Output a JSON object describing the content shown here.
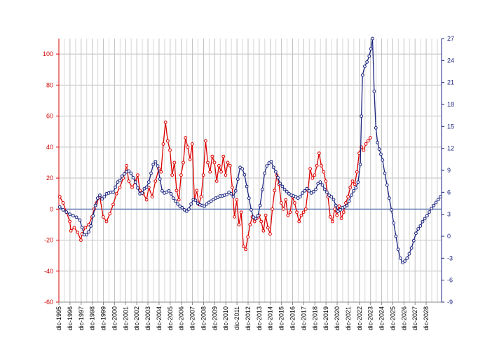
{
  "chart_data": {
    "type": "line",
    "title": "",
    "xlabel": "",
    "ylabel": "",
    "grid": true,
    "x_range": [
      1995.92,
      2030.3
    ],
    "x_tick_labels": [
      "dic-1995",
      "dic-1996",
      "dic-1997",
      "dic-1998",
      "dic-1999",
      "dic-2000",
      "dic-2001",
      "dic-2002",
      "dic-2003",
      "dic-2004",
      "dic-2005",
      "dic-2006",
      "dic-2007",
      "dic-2008",
      "dic-2009",
      "dic-2010",
      "dic-2011",
      "dic-2012",
      "dic-2013",
      "dic-2014",
      "dic-2015",
      "dic-2016",
      "dic-2017",
      "dic-2018",
      "dic-2019",
      "dic-2020",
      "dic-2021",
      "dic-2022",
      "dic-2023",
      "dic-2024",
      "dic-2025",
      "dic-2026",
      "dic-2027",
      "dic-2028"
    ],
    "left_axis": {
      "ylim": [
        -60,
        110
      ],
      "ticks": [
        -60,
        -40,
        -20,
        0,
        20,
        40,
        60,
        80,
        100
      ],
      "color": "#dd0000"
    },
    "right_axis": {
      "ylim": [
        -9,
        27
      ],
      "ticks": [
        -9,
        -6,
        -3,
        0,
        3,
        6,
        9,
        12,
        15,
        18,
        21,
        24,
        27
      ],
      "color": "#1a237e"
    },
    "zero_line": {
      "axis": "left",
      "value": 0,
      "color": "#4f6fb0"
    },
    "series": [
      {
        "axis": "left",
        "color": "#dd0000",
        "marker": "circle",
        "points": [
          [
            1996.0,
            8
          ],
          [
            1996.3,
            4
          ],
          [
            1996.6,
            -2
          ],
          [
            1996.9,
            -8
          ],
          [
            1997.0,
            -14
          ],
          [
            1997.3,
            -12
          ],
          [
            1997.6,
            -15
          ],
          [
            1997.9,
            -20
          ],
          [
            1998.0,
            -16
          ],
          [
            1998.3,
            -12
          ],
          [
            1998.6,
            -10
          ],
          [
            1998.9,
            -5
          ],
          [
            1999.1,
            0
          ],
          [
            1999.3,
            4
          ],
          [
            1999.6,
            8
          ],
          [
            1999.9,
            -5
          ],
          [
            2000.2,
            -8
          ],
          [
            2000.5,
            -3
          ],
          [
            2000.8,
            3
          ],
          [
            2001.1,
            10
          ],
          [
            2001.4,
            14
          ],
          [
            2001.7,
            20
          ],
          [
            2002.0,
            28
          ],
          [
            2002.2,
            18
          ],
          [
            2002.5,
            14
          ],
          [
            2002.8,
            18
          ],
          [
            2003.0,
            22
          ],
          [
            2003.2,
            12
          ],
          [
            2003.5,
            10
          ],
          [
            2003.8,
            6
          ],
          [
            2004.0,
            14
          ],
          [
            2004.3,
            8
          ],
          [
            2004.6,
            18
          ],
          [
            2004.9,
            26
          ],
          [
            2005.1,
            24
          ],
          [
            2005.3,
            42
          ],
          [
            2005.5,
            56
          ],
          [
            2005.7,
            44
          ],
          [
            2005.9,
            38
          ],
          [
            2006.1,
            22
          ],
          [
            2006.3,
            30
          ],
          [
            2006.5,
            12
          ],
          [
            2006.7,
            6
          ],
          [
            2006.9,
            22
          ],
          [
            2007.1,
            30
          ],
          [
            2007.3,
            46
          ],
          [
            2007.5,
            40
          ],
          [
            2007.7,
            32
          ],
          [
            2007.9,
            42
          ],
          [
            2008.1,
            6
          ],
          [
            2008.3,
            12
          ],
          [
            2008.5,
            3
          ],
          [
            2008.7,
            8
          ],
          [
            2008.9,
            22
          ],
          [
            2009.1,
            44
          ],
          [
            2009.3,
            30
          ],
          [
            2009.5,
            24
          ],
          [
            2009.7,
            34
          ],
          [
            2009.9,
            30
          ],
          [
            2010.1,
            18
          ],
          [
            2010.3,
            28
          ],
          [
            2010.5,
            24
          ],
          [
            2010.7,
            34
          ],
          [
            2010.9,
            22
          ],
          [
            2011.1,
            30
          ],
          [
            2011.3,
            28
          ],
          [
            2011.5,
            14
          ],
          [
            2011.7,
            -5
          ],
          [
            2011.9,
            6
          ],
          [
            2012.1,
            -10
          ],
          [
            2012.3,
            -2
          ],
          [
            2012.5,
            -24
          ],
          [
            2012.7,
            -26
          ],
          [
            2012.9,
            -18
          ],
          [
            2013.1,
            -10
          ],
          [
            2013.3,
            -5
          ],
          [
            2013.5,
            -8
          ],
          [
            2013.7,
            -6
          ],
          [
            2013.9,
            -4
          ],
          [
            2014.1,
            -8
          ],
          [
            2014.3,
            -14
          ],
          [
            2014.5,
            -4
          ],
          [
            2014.7,
            -12
          ],
          [
            2014.9,
            -16
          ],
          [
            2015.1,
            0
          ],
          [
            2015.3,
            12
          ],
          [
            2015.5,
            22
          ],
          [
            2015.7,
            16
          ],
          [
            2015.9,
            4
          ],
          [
            2016.1,
            0
          ],
          [
            2016.3,
            6
          ],
          [
            2016.5,
            -4
          ],
          [
            2016.7,
            -2
          ],
          [
            2016.9,
            8
          ],
          [
            2017.1,
            4
          ],
          [
            2017.3,
            -2
          ],
          [
            2017.5,
            -8
          ],
          [
            2017.7,
            -4
          ],
          [
            2017.9,
            -2
          ],
          [
            2018.1,
            0
          ],
          [
            2018.3,
            12
          ],
          [
            2018.5,
            26
          ],
          [
            2018.7,
            20
          ],
          [
            2018.9,
            22
          ],
          [
            2019.1,
            28
          ],
          [
            2019.3,
            36
          ],
          [
            2019.5,
            28
          ],
          [
            2019.7,
            24
          ],
          [
            2019.9,
            18
          ],
          [
            2020.1,
            8
          ],
          [
            2020.3,
            -5
          ],
          [
            2020.5,
            -8
          ],
          [
            2020.7,
            0
          ],
          [
            2020.9,
            -4
          ],
          [
            2021.1,
            2
          ],
          [
            2021.3,
            -6
          ],
          [
            2021.5,
            -2
          ],
          [
            2021.7,
            4
          ],
          [
            2021.9,
            8
          ],
          [
            2022.1,
            14
          ],
          [
            2022.3,
            18
          ],
          [
            2022.5,
            16
          ],
          [
            2022.7,
            24
          ],
          [
            2022.9,
            36
          ],
          [
            2023.1,
            40
          ],
          [
            2023.3,
            38
          ],
          [
            2023.5,
            42
          ],
          [
            2023.7,
            44
          ],
          [
            2023.9,
            46
          ]
        ]
      },
      {
        "axis": "right",
        "color": "#1a237e",
        "marker": "circle",
        "points": [
          [
            1996.0,
            4.0
          ],
          [
            1996.3,
            3.6
          ],
          [
            1996.6,
            3.3
          ],
          [
            1996.9,
            3.0
          ],
          [
            1997.2,
            2.8
          ],
          [
            1997.5,
            2.6
          ],
          [
            1997.8,
            2.2
          ],
          [
            1998.0,
            1.2
          ],
          [
            1998.2,
            0.2
          ],
          [
            1998.4,
            0.2
          ],
          [
            1998.6,
            0.6
          ],
          [
            1998.8,
            1.4
          ],
          [
            1999.0,
            2.8
          ],
          [
            1999.2,
            4.2
          ],
          [
            1999.4,
            5.2
          ],
          [
            1999.6,
            5.6
          ],
          [
            1999.8,
            5.1
          ],
          [
            2000.0,
            5.4
          ],
          [
            2000.2,
            5.8
          ],
          [
            2000.4,
            5.9
          ],
          [
            2000.6,
            6.0
          ],
          [
            2000.8,
            6.0
          ],
          [
            2001.0,
            6.7
          ],
          [
            2001.2,
            7.4
          ],
          [
            2001.4,
            7.6
          ],
          [
            2001.6,
            8.2
          ],
          [
            2001.8,
            8.5
          ],
          [
            2002.0,
            8.8
          ],
          [
            2002.2,
            8.9
          ],
          [
            2002.4,
            8.6
          ],
          [
            2002.6,
            8.0
          ],
          [
            2002.8,
            7.4
          ],
          [
            2003.0,
            6.6
          ],
          [
            2003.2,
            5.8
          ],
          [
            2003.4,
            5.9
          ],
          [
            2003.6,
            6.5
          ],
          [
            2003.8,
            6.7
          ],
          [
            2004.0,
            7.4
          ],
          [
            2004.2,
            8.6
          ],
          [
            2004.4,
            9.8
          ],
          [
            2004.6,
            10.2
          ],
          [
            2004.8,
            9.6
          ],
          [
            2005.0,
            7.8
          ],
          [
            2005.2,
            6.2
          ],
          [
            2005.4,
            5.9
          ],
          [
            2005.6,
            6.0
          ],
          [
            2005.8,
            6.2
          ],
          [
            2006.0,
            5.8
          ],
          [
            2006.2,
            5.2
          ],
          [
            2006.4,
            4.8
          ],
          [
            2006.6,
            4.4
          ],
          [
            2006.8,
            4.1
          ],
          [
            2007.0,
            3.9
          ],
          [
            2007.2,
            3.6
          ],
          [
            2007.4,
            3.4
          ],
          [
            2007.6,
            3.7
          ],
          [
            2007.8,
            4.4
          ],
          [
            2008.0,
            5.0
          ],
          [
            2008.2,
            4.9
          ],
          [
            2008.4,
            4.5
          ],
          [
            2008.6,
            4.3
          ],
          [
            2008.8,
            4.2
          ],
          [
            2009.0,
            4.1
          ],
          [
            2009.2,
            4.4
          ],
          [
            2009.4,
            4.6
          ],
          [
            2009.6,
            4.8
          ],
          [
            2009.8,
            5.0
          ],
          [
            2010.0,
            5.2
          ],
          [
            2010.2,
            5.3
          ],
          [
            2010.4,
            5.5
          ],
          [
            2010.6,
            5.5
          ],
          [
            2010.8,
            5.6
          ],
          [
            2011.0,
            5.7
          ],
          [
            2011.2,
            6.0
          ],
          [
            2011.4,
            5.8
          ],
          [
            2011.6,
            5.4
          ],
          [
            2011.8,
            6.2
          ],
          [
            2012.0,
            7.8
          ],
          [
            2012.2,
            9.4
          ],
          [
            2012.4,
            9.2
          ],
          [
            2012.6,
            8.4
          ],
          [
            2012.8,
            6.8
          ],
          [
            2013.0,
            5.2
          ],
          [
            2013.2,
            3.6
          ],
          [
            2013.4,
            2.6
          ],
          [
            2013.6,
            2.4
          ],
          [
            2013.8,
            2.8
          ],
          [
            2014.0,
            4.2
          ],
          [
            2014.2,
            6.4
          ],
          [
            2014.4,
            8.6
          ],
          [
            2014.6,
            9.6
          ],
          [
            2014.8,
            10.0
          ],
          [
            2015.0,
            10.2
          ],
          [
            2015.2,
            9.4
          ],
          [
            2015.4,
            8.8
          ],
          [
            2015.6,
            8.0
          ],
          [
            2015.8,
            7.2
          ],
          [
            2016.0,
            6.8
          ],
          [
            2016.2,
            6.4
          ],
          [
            2016.4,
            6.1
          ],
          [
            2016.6,
            5.8
          ],
          [
            2016.8,
            5.6
          ],
          [
            2017.0,
            5.5
          ],
          [
            2017.2,
            5.4
          ],
          [
            2017.4,
            5.2
          ],
          [
            2017.6,
            5.4
          ],
          [
            2017.8,
            5.9
          ],
          [
            2018.0,
            6.2
          ],
          [
            2018.2,
            6.5
          ],
          [
            2018.4,
            6.2
          ],
          [
            2018.6,
            5.9
          ],
          [
            2018.8,
            6.1
          ],
          [
            2019.0,
            6.4
          ],
          [
            2019.2,
            7.2
          ],
          [
            2019.4,
            7.4
          ],
          [
            2019.6,
            7.0
          ],
          [
            2019.8,
            6.4
          ],
          [
            2020.0,
            6.0
          ],
          [
            2020.2,
            5.6
          ],
          [
            2020.4,
            5.4
          ],
          [
            2020.6,
            5.0
          ],
          [
            2020.8,
            4.2
          ],
          [
            2021.0,
            3.4
          ],
          [
            2021.2,
            3.6
          ],
          [
            2021.4,
            3.9
          ],
          [
            2021.6,
            4.0
          ],
          [
            2021.8,
            4.2
          ],
          [
            2022.0,
            4.8
          ],
          [
            2022.2,
            5.6
          ],
          [
            2022.4,
            6.2
          ],
          [
            2022.6,
            6.6
          ],
          [
            2022.8,
            7.4
          ],
          [
            2023.0,
            9.8
          ],
          [
            2023.1,
            16.4
          ],
          [
            2023.2,
            22.0
          ],
          [
            2023.4,
            23.2
          ],
          [
            2023.6,
            23.8
          ],
          [
            2023.8,
            24.6
          ],
          [
            2023.95,
            25.6
          ],
          [
            2024.1,
            27.0
          ],
          [
            2024.25,
            19.8
          ],
          [
            2024.4,
            14.8
          ],
          [
            2024.55,
            12.8
          ],
          [
            2024.7,
            11.9
          ],
          [
            2024.85,
            11.2
          ],
          [
            2025.0,
            10.4
          ],
          [
            2025.2,
            8.6
          ],
          [
            2025.4,
            7.0
          ],
          [
            2025.6,
            5.2
          ],
          [
            2025.8,
            3.6
          ],
          [
            2026.0,
            1.8
          ],
          [
            2026.2,
            0.0
          ],
          [
            2026.4,
            -1.8
          ],
          [
            2026.6,
            -3.0
          ],
          [
            2026.8,
            -3.6
          ],
          [
            2027.0,
            -3.4
          ],
          [
            2027.2,
            -3.0
          ],
          [
            2027.4,
            -2.4
          ],
          [
            2027.6,
            -1.6
          ],
          [
            2027.8,
            -0.6
          ],
          [
            2028.0,
            0.4
          ],
          [
            2028.2,
            1.0
          ],
          [
            2028.4,
            1.4
          ],
          [
            2028.6,
            2.0
          ],
          [
            2028.8,
            2.4
          ],
          [
            2029.0,
            2.8
          ],
          [
            2029.2,
            3.3
          ],
          [
            2029.4,
            3.8
          ],
          [
            2029.6,
            4.2
          ],
          [
            2029.8,
            4.6
          ],
          [
            2030.0,
            5.0
          ],
          [
            2030.2,
            5.4
          ]
        ]
      }
    ]
  }
}
